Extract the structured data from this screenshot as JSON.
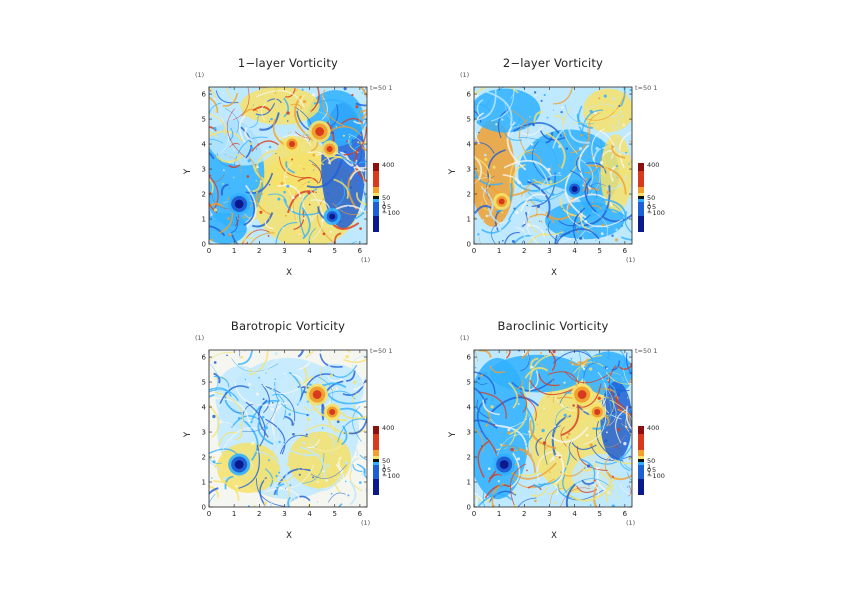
{
  "colors": {
    "deep_blue": "#0a1a8c",
    "blue": "#1f5fd6",
    "light_blue": "#2fb0ff",
    "cyan_white": "#bfe9ff",
    "white": "#f6f6f0",
    "yellow": "#f6e26a",
    "orange": "#f0a030",
    "red": "#d83a1e",
    "dark_red": "#8c1010"
  },
  "chart_data": [
    {
      "type": "heatmap",
      "title": "1−layer Vorticity",
      "xlabel": "X",
      "ylabel": "Y",
      "unit_x": "(1)",
      "unit_y": "(1)",
      "time_label": "t=50 1",
      "xlim": [
        0,
        6.283
      ],
      "ylim": [
        0,
        6.283
      ],
      "x_ticks": [
        "0",
        "1",
        "2",
        "3",
        "4",
        "5",
        "6"
      ],
      "y_ticks": [
        "0",
        "1",
        "2",
        "3",
        "4",
        "5",
        "6"
      ],
      "colorbar_labels": [
        "400",
        "50",
        "1",
        "0",
        "1",
        "−100"
      ],
      "colorbar_overlap_labels": [
        "5"
      ],
      "features": [
        {
          "kind": "vortex",
          "x": 1.2,
          "y": 1.6,
          "sign": "negative",
          "strength": "strong"
        },
        {
          "kind": "vortex",
          "x": 4.4,
          "y": 4.5,
          "sign": "positive",
          "strength": "strong"
        },
        {
          "kind": "vortex",
          "x": 3.3,
          "y": 4.0,
          "sign": "positive",
          "strength": "moderate"
        },
        {
          "kind": "vortex",
          "x": 4.8,
          "y": 3.8,
          "sign": "positive",
          "strength": "moderate"
        },
        {
          "kind": "vortex",
          "x": 4.9,
          "y": 1.1,
          "sign": "negative",
          "strength": "moderate"
        }
      ]
    },
    {
      "type": "heatmap",
      "title": "2−layer Vorticity",
      "xlabel": "X",
      "ylabel": "Y",
      "unit_x": "(1)",
      "unit_y": "(1)",
      "time_label": "t=50 1",
      "xlim": [
        0,
        6.283
      ],
      "ylim": [
        0,
        6.283
      ],
      "x_ticks": [
        "0",
        "1",
        "2",
        "3",
        "4",
        "5",
        "6"
      ],
      "y_ticks": [
        "0",
        "1",
        "2",
        "3",
        "4",
        "5",
        "6"
      ],
      "colorbar_labels": [
        "400",
        "50",
        "1",
        "0",
        "1",
        "−100"
      ],
      "colorbar_overlap_labels": [
        "5"
      ],
      "features": [
        {
          "kind": "vortex",
          "x": 1.1,
          "y": 1.7,
          "sign": "positive",
          "strength": "moderate"
        },
        {
          "kind": "vortex",
          "x": 4.0,
          "y": 2.2,
          "sign": "negative",
          "strength": "moderate"
        }
      ]
    },
    {
      "type": "heatmap",
      "title": "Barotropic Vorticity",
      "xlabel": "X",
      "ylabel": "Y",
      "unit_x": "(1)",
      "unit_y": "(1)",
      "time_label": "t=50 1",
      "xlim": [
        0,
        6.283
      ],
      "ylim": [
        0,
        6.283
      ],
      "x_ticks": [
        "0",
        "1",
        "2",
        "3",
        "4",
        "5",
        "6"
      ],
      "y_ticks": [
        "0",
        "1",
        "2",
        "3",
        "4",
        "5",
        "6"
      ],
      "colorbar_labels": [
        "400",
        "50",
        "1",
        "0",
        "1",
        "−100"
      ],
      "colorbar_overlap_labels": [
        "5"
      ],
      "features": [
        {
          "kind": "vortex",
          "x": 1.2,
          "y": 1.7,
          "sign": "negative",
          "strength": "strong"
        },
        {
          "kind": "vortex",
          "x": 4.3,
          "y": 4.5,
          "sign": "positive",
          "strength": "strong"
        },
        {
          "kind": "vortex",
          "x": 4.9,
          "y": 3.8,
          "sign": "positive",
          "strength": "moderate"
        }
      ]
    },
    {
      "type": "heatmap",
      "title": "Baroclinic Vorticity",
      "xlabel": "X",
      "ylabel": "Y",
      "unit_x": "(1)",
      "unit_y": "(1)",
      "time_label": "t=50 1",
      "xlim": [
        0,
        6.283
      ],
      "ylim": [
        0,
        6.283
      ],
      "x_ticks": [
        "0",
        "1",
        "2",
        "3",
        "4",
        "5",
        "6"
      ],
      "y_ticks": [
        "0",
        "1",
        "2",
        "3",
        "4",
        "5",
        "6"
      ],
      "colorbar_labels": [
        "400",
        "50",
        "1",
        "0",
        "1",
        "−100"
      ],
      "colorbar_overlap_labels": [
        "5"
      ],
      "features": [
        {
          "kind": "vortex",
          "x": 1.2,
          "y": 1.7,
          "sign": "negative",
          "strength": "strong"
        },
        {
          "kind": "vortex",
          "x": 4.3,
          "y": 4.5,
          "sign": "positive",
          "strength": "strong"
        },
        {
          "kind": "vortex",
          "x": 4.9,
          "y": 3.8,
          "sign": "positive",
          "strength": "moderate"
        }
      ]
    }
  ]
}
